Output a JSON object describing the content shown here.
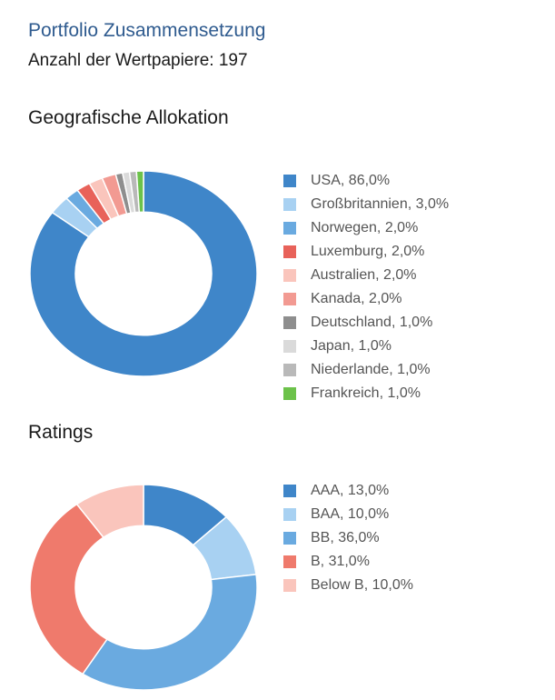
{
  "header": {
    "title": "Portfolio Zusammensetzung",
    "securities_count": "Anzahl der Wertpapiere: 197"
  },
  "chart_data": [
    {
      "type": "pie",
      "title": "Geografische Allokation",
      "unit": "%",
      "slices": [
        {
          "label": "USA, 86,0%",
          "value": 86.0,
          "color": "#3f86c9"
        },
        {
          "label": "Großbritannien, 3,0%",
          "value": 3.0,
          "color": "#a8d1f2"
        },
        {
          "label": "Norwegen, 2,0%",
          "value": 2.0,
          "color": "#6aaae0"
        },
        {
          "label": "Luxemburg, 2,0%",
          "value": 2.0,
          "color": "#e8625a"
        },
        {
          "label": "Australien, 2,0%",
          "value": 2.0,
          "color": "#fac5bc"
        },
        {
          "label": "Kanada, 2,0%",
          "value": 2.0,
          "color": "#f29a92"
        },
        {
          "label": "Deutschland, 1,0%",
          "value": 1.0,
          "color": "#8e8e8e"
        },
        {
          "label": "Japan, 1,0%",
          "value": 1.0,
          "color": "#dadada"
        },
        {
          "label": "Niederlande, 1,0%",
          "value": 1.0,
          "color": "#b9b9b9"
        },
        {
          "label": "Frankreich, 1,0%",
          "value": 1.0,
          "color": "#6cc24a"
        }
      ]
    },
    {
      "type": "pie",
      "title": "Ratings",
      "unit": "%",
      "slices": [
        {
          "label": "AAA, 13,0%",
          "value": 13.0,
          "color": "#3f86c9"
        },
        {
          "label": "BAA, 10,0%",
          "value": 10.0,
          "color": "#a8d1f2"
        },
        {
          "label": "BB, 36,0%",
          "value": 36.0,
          "color": "#6aaae0"
        },
        {
          "label": "B, 31,0%",
          "value": 31.0,
          "color": "#ef7a6c"
        },
        {
          "label": "Below B, 10,0%",
          "value": 10.0,
          "color": "#fac5bc"
        }
      ]
    }
  ]
}
